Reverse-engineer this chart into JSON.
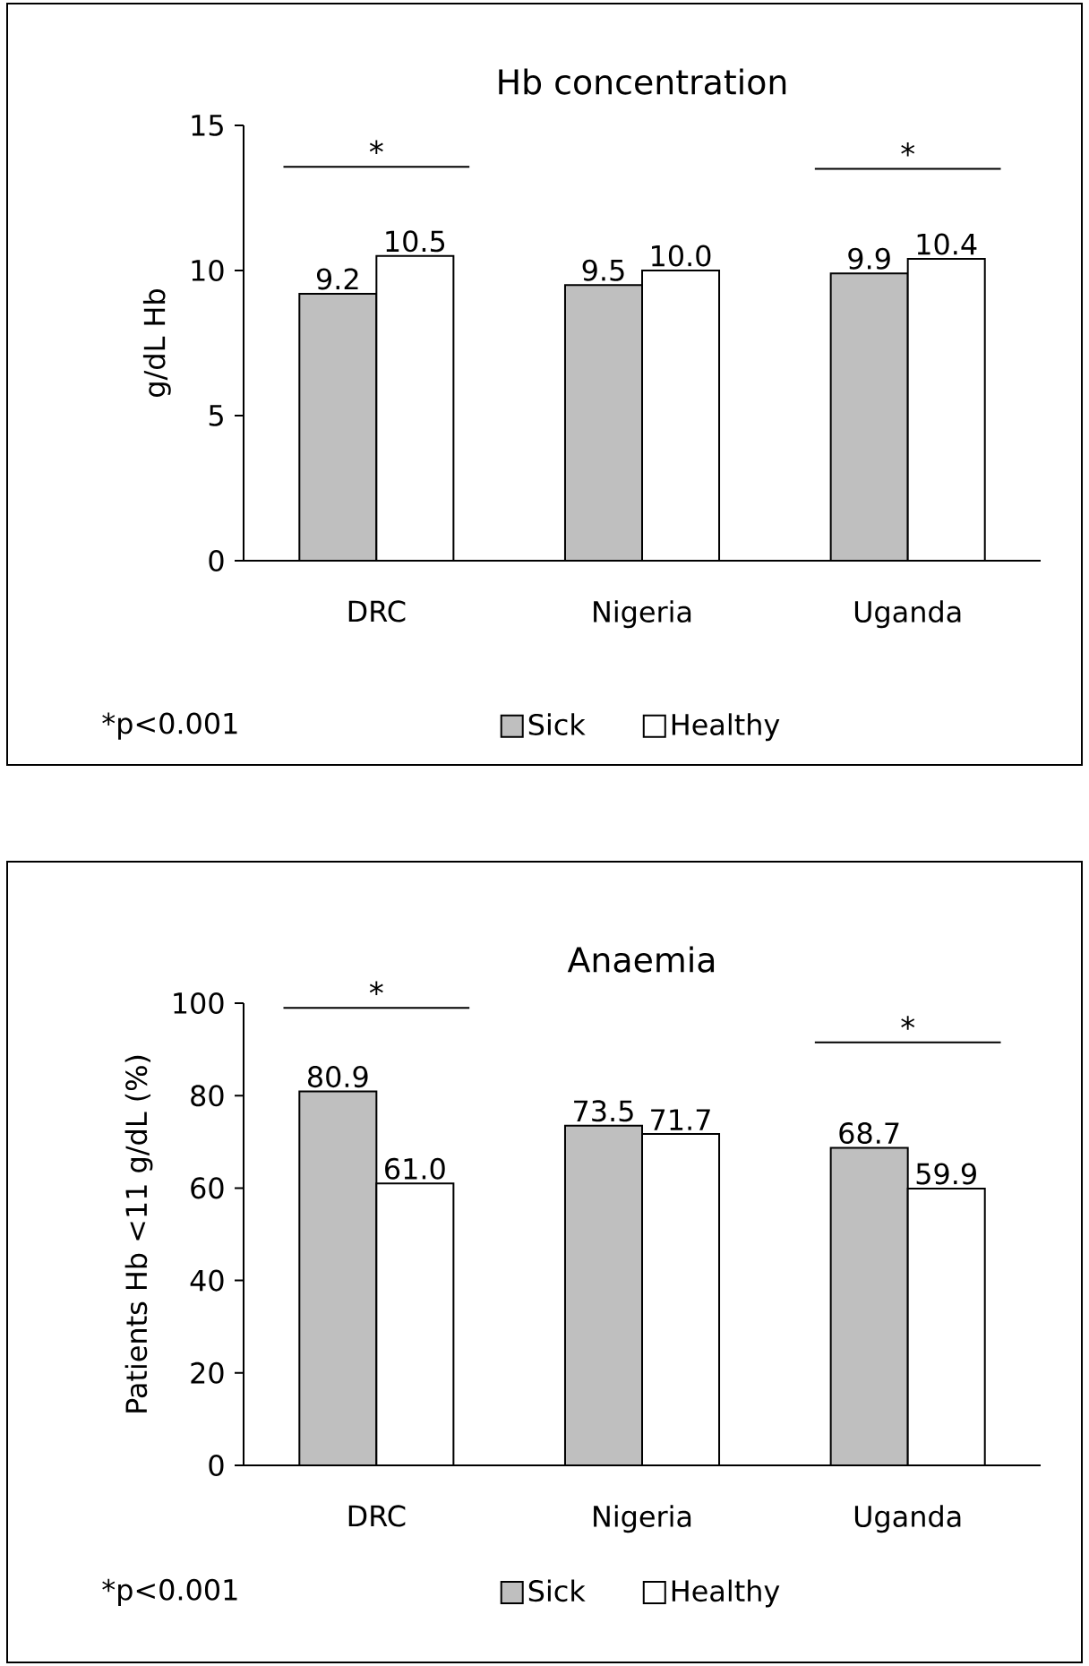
{
  "chart_data": [
    {
      "type": "bar",
      "title": "Hb concentration",
      "ylabel": "g/dL Hb",
      "categories": [
        "DRC",
        "Nigeria",
        "Uganda"
      ],
      "series": [
        {
          "name": "Sick",
          "color": "#bfbfbf",
          "values": [
            9.2,
            9.5,
            9.9
          ],
          "value_labels": [
            "9.2",
            "9.5",
            "9.9"
          ]
        },
        {
          "name": "Healthy",
          "color": "#ffffff",
          "values": [
            10.5,
            10.0,
            10.4
          ],
          "value_labels": [
            "10.5",
            "10.0",
            "10.4"
          ]
        }
      ],
      "ylim": [
        0,
        15
      ],
      "yticks": [
        0,
        5,
        10,
        15
      ],
      "legend": "bottom",
      "annotations": [
        "*",
        "*",
        "*p<0.001"
      ]
    },
    {
      "type": "bar",
      "title": "Anaemia",
      "ylabel": "Patients Hb <11 g/dL (%)",
      "categories": [
        "DRC",
        "Nigeria",
        "Uganda"
      ],
      "series": [
        {
          "name": "Sick",
          "color": "#bfbfbf",
          "values": [
            80.9,
            73.5,
            68.7
          ],
          "value_labels": [
            "80.9",
            "73.5",
            "68.7"
          ]
        },
        {
          "name": "Healthy",
          "color": "#ffffff",
          "values": [
            61.0,
            71.7,
            59.9
          ],
          "value_labels": [
            "61.0",
            "71.7",
            "59.9"
          ]
        }
      ],
      "ylim": [
        0,
        100
      ],
      "yticks": [
        0,
        20,
        40,
        60,
        80,
        100
      ],
      "legend": "bottom",
      "annotations": [
        "*",
        "*",
        "*p<0.001"
      ]
    }
  ]
}
